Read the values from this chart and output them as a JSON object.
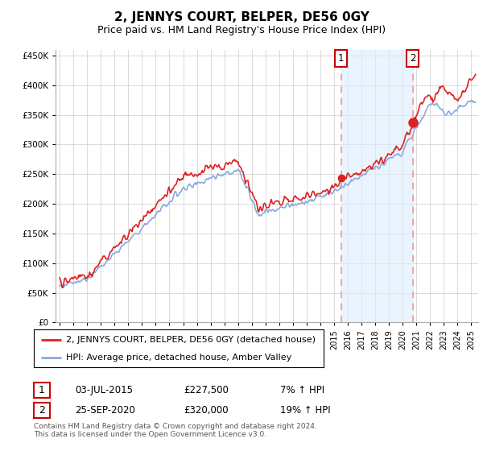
{
  "title": "2, JENNYS COURT, BELPER, DE56 0GY",
  "subtitle": "Price paid vs. HM Land Registry's House Price Index (HPI)",
  "ylabel_ticks": [
    "£0",
    "£50K",
    "£100K",
    "£150K",
    "£200K",
    "£250K",
    "£300K",
    "£350K",
    "£400K",
    "£450K"
  ],
  "ytick_values": [
    0,
    50000,
    100000,
    150000,
    200000,
    250000,
    300000,
    350000,
    400000,
    450000
  ],
  "ylim": [
    0,
    460000
  ],
  "xlim_start": 1994.7,
  "xlim_end": 2025.5,
  "transaction1_date": 2015.5,
  "transaction2_date": 2020.72,
  "transaction1_price": 227500,
  "transaction2_price": 320000,
  "hpi_line_color": "#88aadd",
  "price_line_color": "#dd2222",
  "transaction_box_color": "#cc0000",
  "dashed_line_color": "#ee9999",
  "background_shading_color": "#ddeeff",
  "legend_label_red": "2, JENNYS COURT, BELPER, DE56 0GY (detached house)",
  "legend_label_blue": "HPI: Average price, detached house, Amber Valley",
  "annotation1_label": "1",
  "annotation2_label": "2",
  "table_row1": [
    "1",
    "03-JUL-2015",
    "£227,500",
    "7% ↑ HPI"
  ],
  "table_row2": [
    "2",
    "25-SEP-2020",
    "£320,000",
    "19% ↑ HPI"
  ],
  "footer": "Contains HM Land Registry data © Crown copyright and database right 2024.\nThis data is licensed under the Open Government Licence v3.0.",
  "title_fontsize": 11,
  "subtitle_fontsize": 9,
  "tick_fontsize": 7.5,
  "legend_fontsize": 8.5
}
